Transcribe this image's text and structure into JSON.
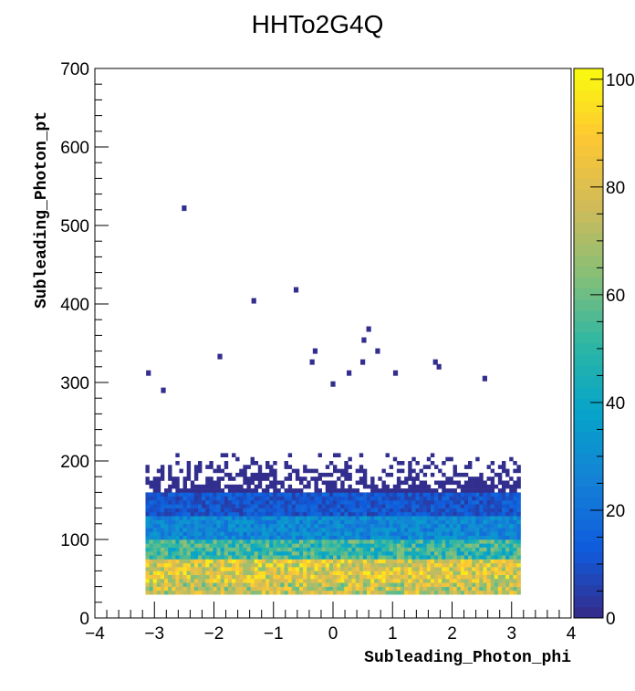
{
  "chart_data": {
    "type": "heatmap",
    "title": "HHTo2G4Q",
    "xlabel": "Subleading_Photon_phi",
    "ylabel": "Subleading_Photon_pt",
    "xlim": [
      -4,
      4
    ],
    "ylim": [
      0,
      700
    ],
    "x_tick_labels": [
      "−4",
      "−3",
      "−2",
      "−1",
      "0",
      "1",
      "2",
      "3",
      "4"
    ],
    "y_tick_labels": [
      "0",
      "100",
      "200",
      "300",
      "400",
      "500",
      "600",
      "700"
    ],
    "colorbar": {
      "range": [
        0,
        102
      ],
      "tick_labels": [
        "0",
        "20",
        "40",
        "60",
        "80",
        "100"
      ],
      "palette": [
        "#352a87",
        "#0f5cdd",
        "#1481d6",
        "#06a4ca",
        "#2eb7a4",
        "#87bf77",
        "#d1bb59",
        "#fec832",
        "#f9fb0e"
      ]
    },
    "binning": {
      "x_range": [
        -3.15,
        3.15
      ],
      "x_bins": 100,
      "y_bin_width": 5
    },
    "description_profile": {
      "phi_range": [
        -3.14,
        3.14
      ],
      "pt_min": 30,
      "dense_region_pt": [
        30,
        160
      ],
      "peak_pt": [
        35,
        70
      ],
      "peak_count": 102,
      "sparse_tail_pt": [
        160,
        320
      ]
    },
    "outliers": [
      {
        "x": -2.5,
        "y": 522
      },
      {
        "x": -1.33,
        "y": 404
      },
      {
        "x": -0.62,
        "y": 418
      },
      {
        "x": 0.6,
        "y": 368
      },
      {
        "x": 0.52,
        "y": 354
      },
      {
        "x": 0.75,
        "y": 340
      },
      {
        "x": -0.3,
        "y": 340
      },
      {
        "x": -1.9,
        "y": 333
      },
      {
        "x": -0.35,
        "y": 326
      },
      {
        "x": 0.5,
        "y": 326
      },
      {
        "x": 1.72,
        "y": 326
      },
      {
        "x": 1.78,
        "y": 320
      },
      {
        "x": -3.1,
        "y": 312
      },
      {
        "x": 0.27,
        "y": 312
      },
      {
        "x": 1.05,
        "y": 312
      },
      {
        "x": 2.55,
        "y": 305
      },
      {
        "x": 0.0,
        "y": 298
      },
      {
        "x": -2.85,
        "y": 290
      }
    ]
  }
}
